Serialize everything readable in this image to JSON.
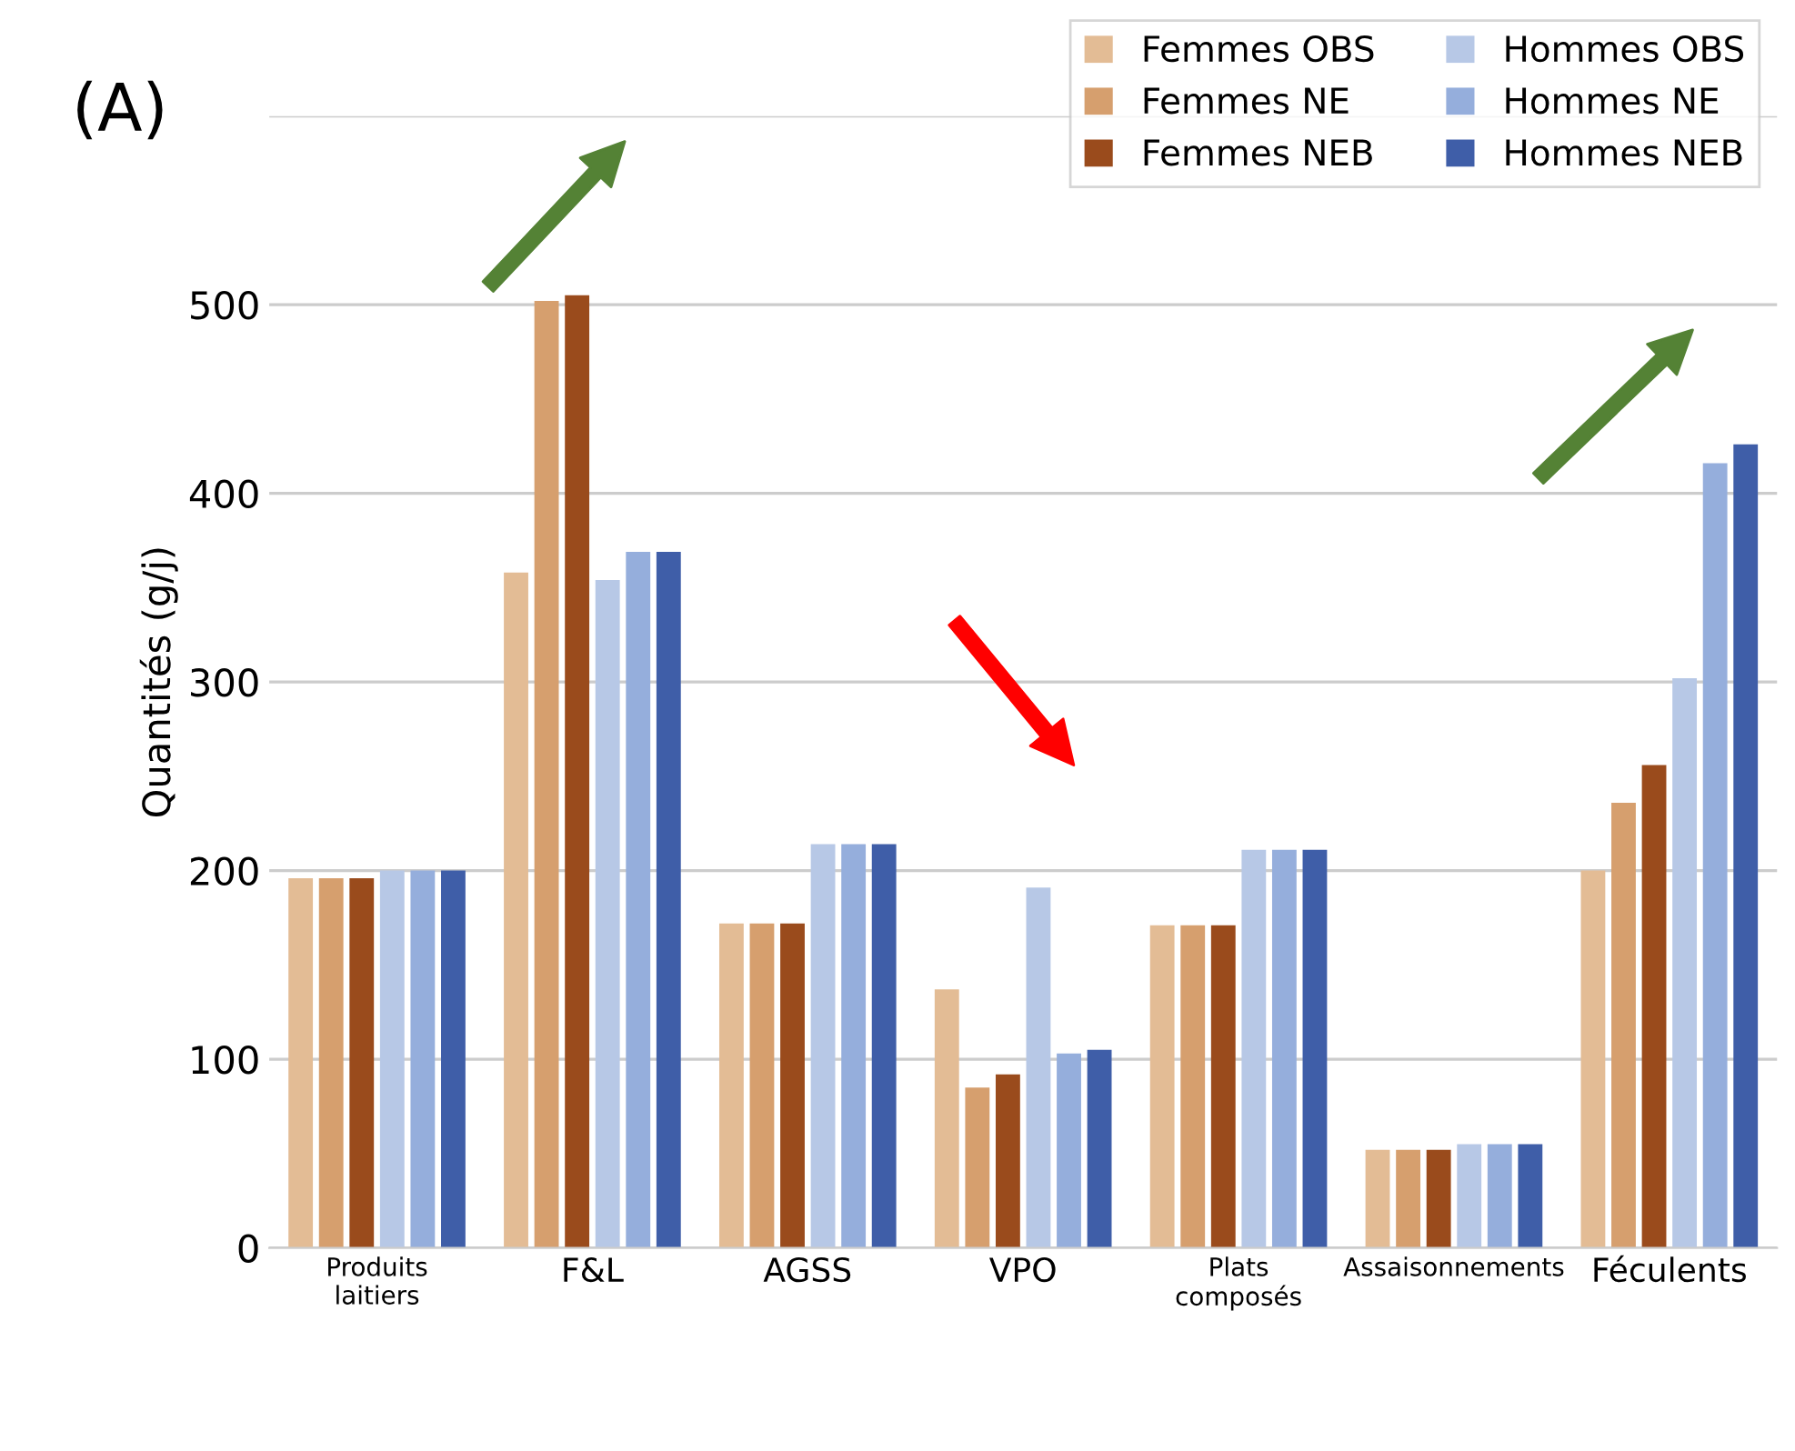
{
  "chart_data": {
    "type": "bar",
    "ylabel": "Quantités (g/j)",
    "annotations": [
      "(A)"
    ],
    "categories": [
      "Produits\nlaitiers",
      "F&L",
      "AGSS",
      "VPO",
      "Plats\ncomposés",
      "Assaisonnements",
      "Féculents"
    ],
    "series": [
      {
        "name": "Femmes OBS",
        "color": "#e3bc95",
        "values": [
          196,
          358,
          172,
          137,
          171,
          52,
          200
        ]
      },
      {
        "name": "Femmes NE",
        "color": "#d69f6e",
        "values": [
          196,
          502,
          172,
          85,
          171,
          52,
          236
        ]
      },
      {
        "name": "Femmes NEB",
        "color": "#9a4b1c",
        "values": [
          196,
          505,
          172,
          92,
          171,
          52,
          256
        ]
      },
      {
        "name": "Hommes OBS",
        "color": "#b7c8e6",
        "values": [
          200,
          354,
          214,
          191,
          211,
          55,
          302
        ]
      },
      {
        "name": "Hommes NE",
        "color": "#95aedc",
        "values": [
          200,
          369,
          214,
          103,
          211,
          55,
          416
        ]
      },
      {
        "name": "Hommes NEB",
        "color": "#3f5ea8",
        "values": [
          200,
          369,
          214,
          105,
          211,
          55,
          426
        ]
      }
    ],
    "ylim": [
      0,
      600
    ],
    "yticks": [
      0,
      100,
      200,
      300,
      400,
      500,
      {
        "value": 600,
        "label": null
      }
    ],
    "grid": "y",
    "legend": "top right"
  }
}
